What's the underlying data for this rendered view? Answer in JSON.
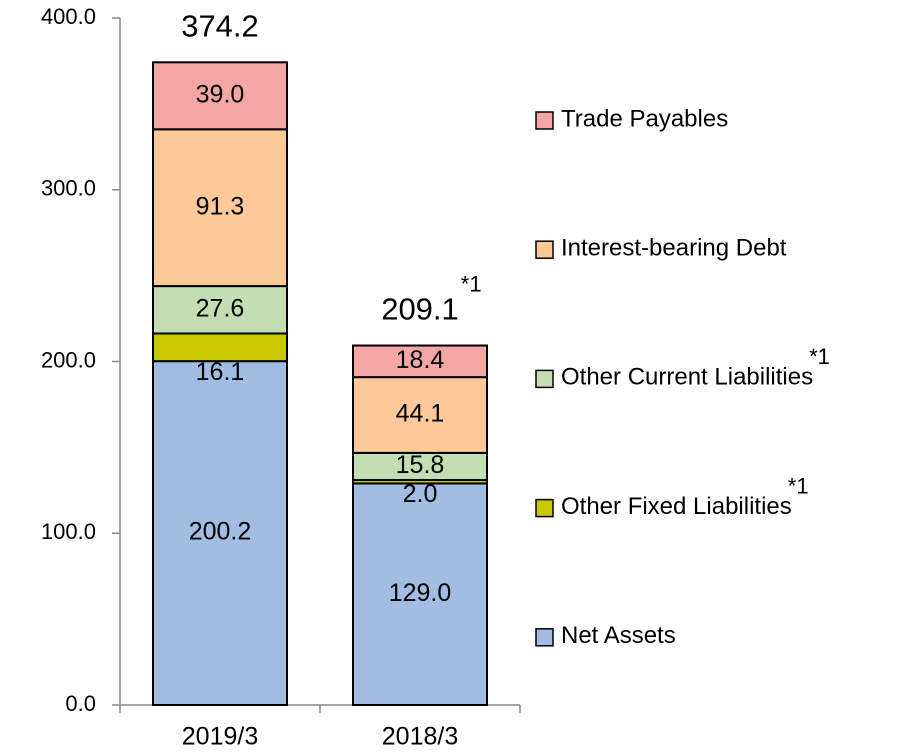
{
  "chart_data": {
    "type": "stacked_bar",
    "categories": [
      "2019/3",
      "2018/3"
    ],
    "series": [
      {
        "name": "Net Assets",
        "color": "#a3bce2",
        "values": [
          200.2,
          129.0
        ],
        "value_labels": [
          "200.2",
          "129.0"
        ]
      },
      {
        "name": "Other Fixed Liabilities",
        "note": "*1",
        "color": "#c8c800",
        "label_position": "below",
        "values": [
          16.1,
          2.0
        ],
        "value_labels": [
          "16.1",
          "2.0"
        ]
      },
      {
        "name": "Other Current Liabilities",
        "note": "*1",
        "color": "#c3deb3",
        "values": [
          27.6,
          15.8
        ],
        "value_labels": [
          "27.6",
          "15.8"
        ]
      },
      {
        "name": "Interest-bearing Debt",
        "color": "#fdc999",
        "values": [
          91.3,
          44.1
        ],
        "value_labels": [
          "91.3",
          "44.1"
        ]
      },
      {
        "name": "Trade Payables",
        "color": "#f4a6a4",
        "values": [
          39.0,
          18.4
        ],
        "value_labels": [
          "39.0",
          "18.4"
        ]
      }
    ],
    "totals": [
      374.2,
      209.1
    ],
    "totals_notes": [
      null,
      "*1"
    ],
    "ylim": [
      0,
      400
    ],
    "yticks": [
      {
        "value": 0,
        "label": "0.0"
      },
      {
        "value": 100,
        "label": "100.0"
      },
      {
        "value": 200,
        "label": "200.0"
      },
      {
        "value": 300,
        "label": "300.0"
      },
      {
        "value": 400,
        "label": "400.0"
      }
    ],
    "legend": "right"
  }
}
